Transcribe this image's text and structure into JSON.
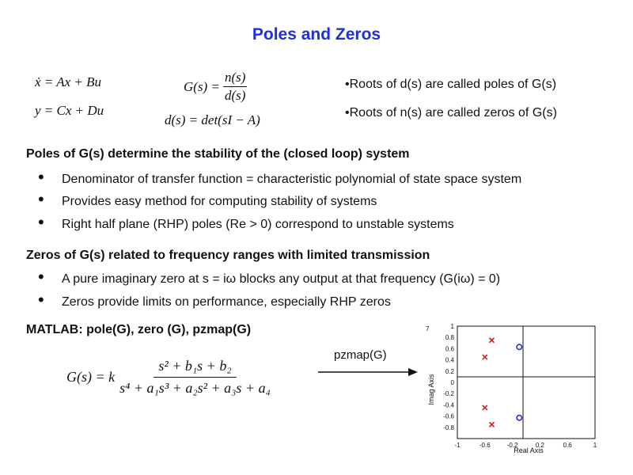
{
  "title": "Poles and Zeros",
  "equations": {
    "state": "ẋ = Ax + Bu",
    "output": "y = Cx + Du",
    "g_lhs": "G(s) =",
    "g_num": "n(s)",
    "g_den": "d(s)",
    "d_def": "d(s) = det(sI − A)"
  },
  "bullets_top": [
    "Roots of d(s) are called poles of G(s)",
    "Roots of n(s) are called zeros of G(s)"
  ],
  "sections": [
    {
      "heading": "Poles of G(s) determine the stability of the (closed loop) system",
      "items": [
        "Denominator of transfer function = characteristic polynomial of state space system",
        "Provides easy method for computing stability of systems",
        "Right half plane (RHP) poles (Re > 0) correspond to unstable systems"
      ]
    },
    {
      "heading": "Zeros of G(s) related to frequency ranges with limited transmission",
      "items": [
        "A pure imaginary zero at s = iω blocks any output at that frequency (G(iω) = 0)",
        "Zeros provide limits on performance, especially RHP zeros"
      ]
    }
  ],
  "matlab": "MATLAB: pole(G), zero (G), pzmap(G)",
  "transfer_fn": {
    "lhs": "G(s) = k",
    "num": "s² + b₁s + b₂",
    "den": "s⁴ + a₁s³ + a₂s² + a₃s + a₄"
  },
  "arrow_label": "pzmap(G)",
  "plot": {
    "corner_label": "7",
    "xlabel": "Real Axis",
    "ylabel": "Imag Axis",
    "x_ticks": [
      "-1",
      "-0.6",
      "-0.2",
      "0.2",
      "0.6",
      "1"
    ],
    "y_ticks": [
      "1",
      "0.8",
      "0.6",
      "0.4",
      "0.2",
      "0",
      "-0.2",
      "-0.4",
      "-0.6",
      "-0.8"
    ],
    "pole_color": "#cc2222",
    "zero_color": "#2233cc"
  },
  "chart_data": {
    "type": "scatter",
    "title": "",
    "xlabel": "Real Axis",
    "ylabel": "Imag Axis",
    "xlim": [
      -1,
      1
    ],
    "ylim": [
      -1,
      1
    ],
    "grid": false,
    "series": [
      {
        "marker": "x",
        "points": [
          [
            -0.5,
            0.75
          ],
          [
            -0.6,
            0.45
          ],
          [
            -0.6,
            -0.45
          ],
          [
            -0.5,
            -0.75
          ]
        ]
      },
      {
        "marker": "o",
        "points": [
          [
            -0.1,
            0.63
          ],
          [
            -0.1,
            -0.63
          ]
        ]
      }
    ]
  }
}
